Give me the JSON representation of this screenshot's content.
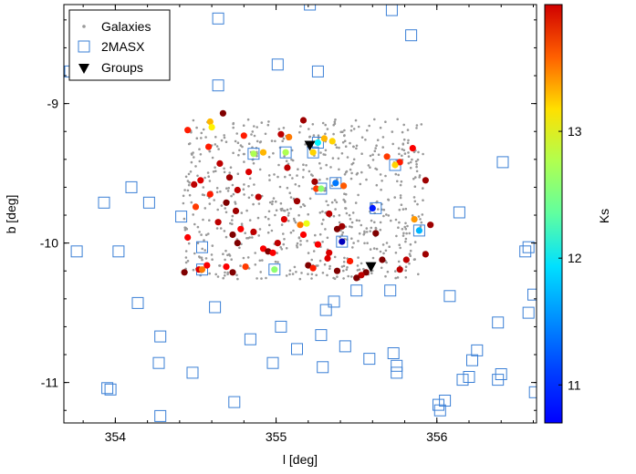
{
  "chart_data": {
    "type": "scatter",
    "xlabel": "l [deg]",
    "ylabel": "b [deg]",
    "xlim": [
      353.68,
      356.62
    ],
    "ylim": [
      -11.29,
      -8.29
    ],
    "xticks": [
      "354",
      "355",
      "356"
    ],
    "xtick_values": [
      354,
      355,
      356
    ],
    "yticks": [
      "-9",
      "-10",
      "-11"
    ],
    "ytick_values": [
      -9,
      -10,
      -11
    ],
    "legend_position": "top-left",
    "legend": [
      "Galaxies",
      "2MASX",
      "Groups"
    ],
    "colorbar": {
      "label": "Ks",
      "range": [
        10.7,
        14.0
      ],
      "ticks": [
        "11",
        "12",
        "13"
      ],
      "tick_values": [
        11,
        12,
        13
      ],
      "colormap": "jet"
    },
    "colors": {
      "galaxies": "#999999",
      "twomasx": "#3a7fd6",
      "groups": "#000000"
    },
    "galaxies_region": {
      "l": [
        354.42,
        355.92
      ],
      "b": [
        -10.26,
        -9.11
      ],
      "count": 720
    },
    "twomasx": [
      [
        354.64,
        -8.39
      ],
      [
        355.21,
        -8.29
      ],
      [
        355.72,
        -8.33
      ],
      [
        355.84,
        -8.51
      ],
      [
        355.01,
        -8.72
      ],
      [
        355.26,
        -8.77
      ],
      [
        354.64,
        -8.87
      ],
      [
        353.72,
        -8.77
      ],
      [
        354.1,
        -9.6
      ],
      [
        353.93,
        -9.71
      ],
      [
        354.21,
        -9.71
      ],
      [
        354.41,
        -9.81
      ],
      [
        354.54,
        -10.03
      ],
      [
        353.76,
        -10.06
      ],
      [
        354.02,
        -10.06
      ],
      [
        354.14,
        -10.43
      ],
      [
        354.62,
        -10.46
      ],
      [
        354.28,
        -10.67
      ],
      [
        354.27,
        -10.86
      ],
      [
        354.48,
        -10.93
      ],
      [
        353.95,
        -11.04
      ],
      [
        353.97,
        -11.05
      ],
      [
        354.28,
        -11.24
      ],
      [
        354.74,
        -11.14
      ],
      [
        354.84,
        -10.69
      ],
      [
        354.98,
        -10.86
      ],
      [
        355.03,
        -10.6
      ],
      [
        355.13,
        -10.76
      ],
      [
        355.28,
        -10.66
      ],
      [
        355.31,
        -10.48
      ],
      [
        355.36,
        -10.42
      ],
      [
        355.29,
        -10.89
      ],
      [
        355.43,
        -10.74
      ],
      [
        355.5,
        -10.34
      ],
      [
        355.58,
        -10.83
      ],
      [
        355.71,
        -10.34
      ],
      [
        355.73,
        -10.79
      ],
      [
        355.75,
        -10.88
      ],
      [
        355.75,
        -10.93
      ],
      [
        356.08,
        -10.38
      ],
      [
        356.14,
        -9.78
      ],
      [
        356.41,
        -9.42
      ],
      [
        356.57,
        -10.03
      ],
      [
        356.55,
        -10.06
      ],
      [
        356.6,
        -10.37
      ],
      [
        356.57,
        -10.5
      ],
      [
        356.38,
        -10.57
      ],
      [
        356.25,
        -10.77
      ],
      [
        356.22,
        -10.84
      ],
      [
        356.2,
        -10.96
      ],
      [
        356.16,
        -10.98
      ],
      [
        356.4,
        -10.94
      ],
      [
        356.38,
        -10.98
      ],
      [
        356.61,
        -11.07
      ],
      [
        356.05,
        -11.13
      ],
      [
        356.01,
        -11.16
      ],
      [
        356.02,
        -11.2
      ],
      [
        355.26,
        -9.28
      ],
      [
        355.06,
        -9.35
      ],
      [
        355.23,
        -9.35
      ],
      [
        354.86,
        -9.36
      ],
      [
        355.37,
        -9.57
      ],
      [
        355.41,
        -9.99
      ],
      [
        355.28,
        -9.61
      ],
      [
        355.62,
        -9.75
      ],
      [
        355.89,
        -9.91
      ],
      [
        354.99,
        -10.19
      ],
      [
        354.54,
        -10.19
      ],
      [
        355.74,
        -9.44
      ]
    ],
    "groups": [
      [
        355.21,
        -9.3
      ],
      [
        355.59,
        -10.17
      ]
    ],
    "colored_points": [
      [
        354.67,
        -9.07,
        14.0
      ],
      [
        355.17,
        -9.12,
        13.9
      ],
      [
        354.45,
        -9.19,
        13.5
      ],
      [
        354.59,
        -9.13,
        13.0
      ],
      [
        354.8,
        -9.23,
        13.5
      ],
      [
        355.03,
        -9.22,
        13.8
      ],
      [
        355.35,
        -9.27,
        12.9
      ],
      [
        354.58,
        -9.31,
        13.5
      ],
      [
        354.92,
        -9.35,
        13.0
      ],
      [
        354.65,
        -9.43,
        13.8
      ],
      [
        354.83,
        -9.49,
        13.7
      ],
      [
        354.53,
        -9.55,
        13.7
      ],
      [
        354.71,
        -9.53,
        13.9
      ],
      [
        355.07,
        -9.46,
        13.8
      ],
      [
        355.77,
        -9.42,
        13.5
      ],
      [
        355.85,
        -9.32,
        13.6
      ],
      [
        355.69,
        -9.38,
        13.4
      ],
      [
        355.93,
        -9.55,
        13.9
      ],
      [
        355.42,
        -9.59,
        13.3
      ],
      [
        355.24,
        -9.56,
        13.9
      ],
      [
        355.25,
        -9.61,
        13.4
      ],
      [
        354.49,
        -9.58,
        13.8
      ],
      [
        354.76,
        -9.62,
        13.8
      ],
      [
        354.59,
        -9.65,
        13.5
      ],
      [
        354.69,
        -9.71,
        14.0
      ],
      [
        354.89,
        -9.67,
        13.8
      ],
      [
        355.13,
        -9.7,
        13.9
      ],
      [
        354.5,
        -9.74,
        13.4
      ],
      [
        354.75,
        -9.77,
        13.9
      ],
      [
        355.33,
        -9.79,
        13.8
      ],
      [
        355.05,
        -9.83,
        13.7
      ],
      [
        355.15,
        -9.87,
        13.2
      ],
      [
        354.64,
        -9.85,
        13.8
      ],
      [
        354.78,
        -9.9,
        13.6
      ],
      [
        355.41,
        -9.88,
        13.9
      ],
      [
        355.38,
        -9.9,
        14.0
      ],
      [
        354.45,
        -9.96,
        13.6
      ],
      [
        354.73,
        -9.94,
        14.0
      ],
      [
        354.86,
        -9.92,
        13.8
      ],
      [
        355.62,
        -9.93,
        14.0
      ],
      [
        355.86,
        -9.83,
        13.1
      ],
      [
        355.96,
        -9.87,
        13.9
      ],
      [
        355.17,
        -9.94,
        13.6
      ],
      [
        354.76,
        -10.0,
        14.0
      ],
      [
        355.01,
        -10.0,
        13.8
      ],
      [
        355.26,
        -10.01,
        13.6
      ],
      [
        354.92,
        -10.04,
        13.6
      ],
      [
        354.95,
        -10.06,
        14.0
      ],
      [
        354.98,
        -10.07,
        13.6
      ],
      [
        355.33,
        -10.07,
        13.7
      ],
      [
        355.93,
        -10.08,
        13.9
      ],
      [
        355.81,
        -10.12,
        13.8
      ],
      [
        355.66,
        -10.12,
        14.0
      ],
      [
        354.69,
        -10.17,
        13.6
      ],
      [
        354.81,
        -10.17,
        13.4
      ],
      [
        355.32,
        -10.11,
        13.7
      ],
      [
        355.46,
        -10.13,
        13.5
      ],
      [
        355.38,
        -10.2,
        14.0
      ],
      [
        355.2,
        -10.16,
        14.0
      ],
      [
        355.23,
        -10.18,
        13.5
      ],
      [
        354.43,
        -10.21,
        14.0
      ],
      [
        354.52,
        -10.19,
        13.7
      ],
      [
        354.73,
        -10.21,
        14.0
      ],
      [
        355.56,
        -10.21,
        14.0
      ],
      [
        355.53,
        -10.23,
        13.8
      ],
      [
        355.77,
        -10.19,
        13.8
      ],
      [
        354.57,
        -10.16,
        13.6
      ],
      [
        355.5,
        -10.25,
        14.0
      ],
      [
        355.19,
        -9.86,
        12.7
      ],
      [
        355.08,
        -9.24,
        13.2
      ],
      [
        355.3,
        -9.25,
        13.0
      ],
      [
        354.6,
        -9.17,
        12.8
      ],
      [
        355.6,
        -9.75,
        11.2
      ],
      [
        355.41,
        -9.99,
        10.9
      ],
      [
        355.89,
        -9.91,
        11.7
      ],
      [
        355.37,
        -9.57,
        11.5
      ],
      [
        355.28,
        -9.61,
        12.4
      ],
      [
        354.86,
        -9.36,
        12.5
      ],
      [
        355.23,
        -9.35,
        12.9
      ],
      [
        354.99,
        -10.19,
        12.4
      ],
      [
        354.54,
        -10.19,
        13.2
      ],
      [
        355.74,
        -9.44,
        12.9
      ],
      [
        355.06,
        -9.35,
        12.5
      ],
      [
        355.26,
        -9.28,
        11.9
      ]
    ]
  }
}
